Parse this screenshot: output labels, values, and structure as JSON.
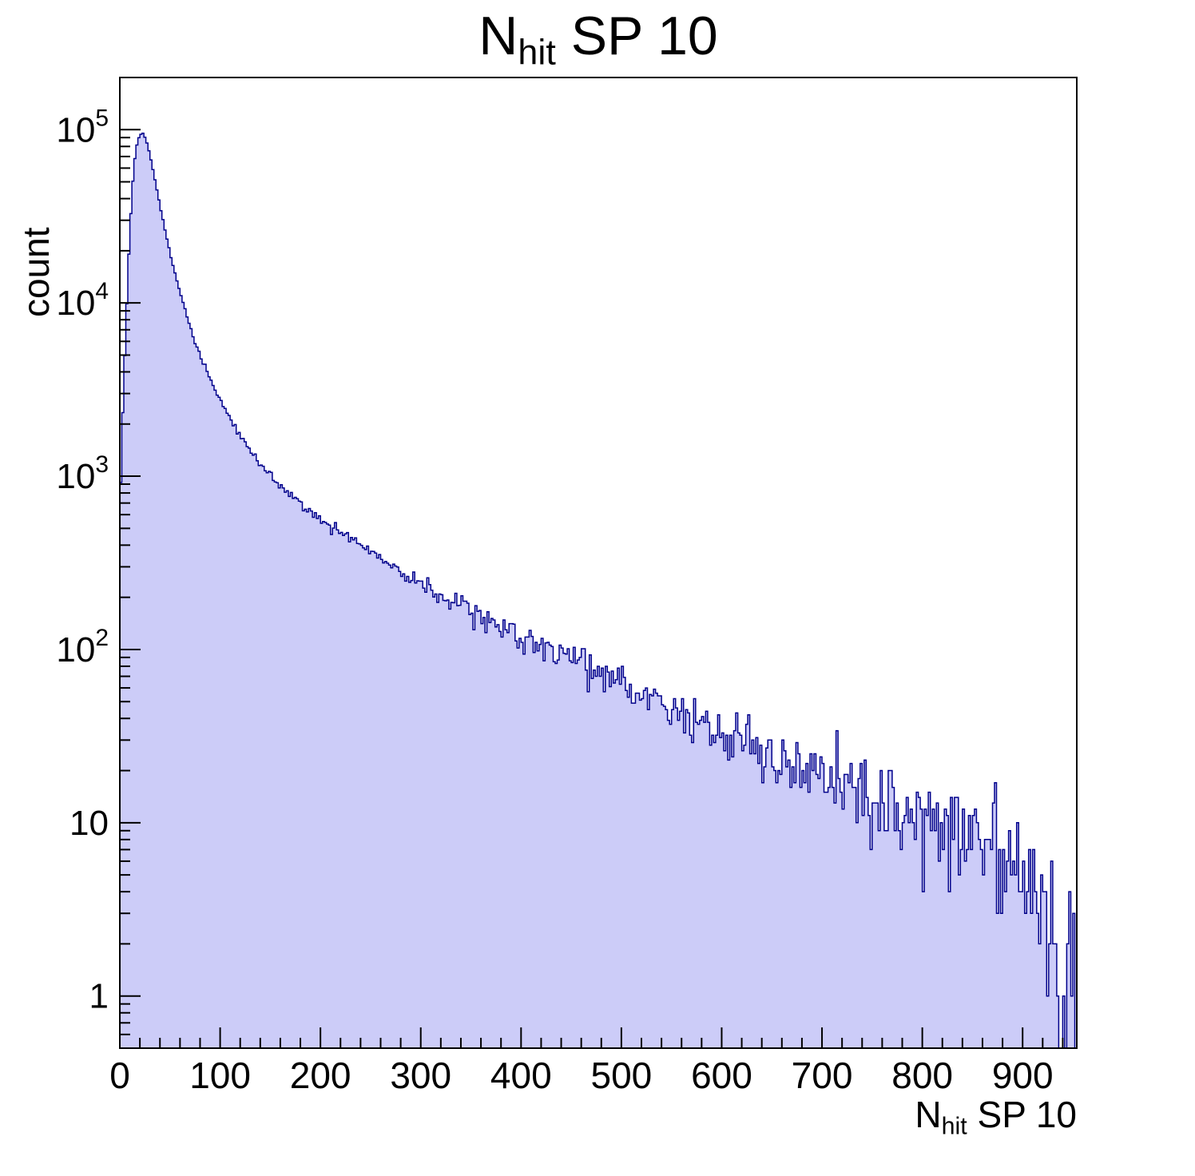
{
  "title": {
    "main": "N",
    "sub": "hit",
    "rest": " SP 10"
  },
  "axes": {
    "x": {
      "label_main": "N",
      "label_sub": "hit",
      "label_rest": " SP 10",
      "min": 0,
      "max": 954,
      "major_ticks": [
        0,
        100,
        200,
        300,
        400,
        500,
        600,
        700,
        800,
        900
      ],
      "minor_step": 20
    },
    "y": {
      "label": "count",
      "scale": "log",
      "min": 0.5,
      "max": 200000,
      "major_ticks": [
        1,
        10,
        100,
        1000,
        10000,
        100000
      ]
    }
  },
  "style": {
    "fill_color": "#ccccf8",
    "line_color": "#00008b",
    "frame_color": "#000000",
    "background": "#ffffff"
  },
  "chart_data": {
    "type": "bar",
    "subtype": "histogram-log-step",
    "title": "N_hit SP 10",
    "xlabel": "N_hit SP 10",
    "ylabel": "count",
    "xlim": [
      0,
      954
    ],
    "ylim": [
      0.5,
      200000
    ],
    "bin_width": 2,
    "x_start": 0,
    "n_bins": 477,
    "noise": {
      "model": "poisson",
      "seed": 911
    },
    "anchors": [
      [
        0,
        500
      ],
      [
        2,
        1600
      ],
      [
        4,
        3500
      ],
      [
        6,
        7000
      ],
      [
        8,
        14000
      ],
      [
        10,
        26000
      ],
      [
        12,
        42000
      ],
      [
        14,
        60000
      ],
      [
        16,
        76000
      ],
      [
        18,
        87000
      ],
      [
        20,
        93500
      ],
      [
        23,
        95500
      ],
      [
        26,
        88000
      ],
      [
        29,
        76000
      ],
      [
        32,
        63000
      ],
      [
        36,
        48000
      ],
      [
        40,
        36500
      ],
      [
        45,
        26500
      ],
      [
        50,
        19500
      ],
      [
        55,
        14800
      ],
      [
        60,
        11500
      ],
      [
        65,
        9100
      ],
      [
        70,
        7300
      ],
      [
        75,
        6000
      ],
      [
        80,
        5050
      ],
      [
        85,
        4300
      ],
      [
        90,
        3650
      ],
      [
        95,
        3150
      ],
      [
        100,
        2750
      ],
      [
        110,
        2150
      ],
      [
        120,
        1750
      ],
      [
        130,
        1430
      ],
      [
        140,
        1190
      ],
      [
        150,
        1010
      ],
      [
        160,
        880
      ],
      [
        170,
        780
      ],
      [
        180,
        695
      ],
      [
        190,
        625
      ],
      [
        200,
        565
      ],
      [
        215,
        495
      ],
      [
        230,
        435
      ],
      [
        245,
        382
      ],
      [
        260,
        337
      ],
      [
        275,
        298
      ],
      [
        290,
        264
      ],
      [
        300,
        243
      ],
      [
        320,
        207
      ],
      [
        340,
        180
      ],
      [
        360,
        157
      ],
      [
        380,
        137
      ],
      [
        400,
        119
      ],
      [
        420,
        105
      ],
      [
        440,
        93
      ],
      [
        460,
        82
      ],
      [
        480,
        72
      ],
      [
        500,
        63
      ],
      [
        520,
        55
      ],
      [
        540,
        48
      ],
      [
        560,
        42.5
      ],
      [
        580,
        37.5
      ],
      [
        600,
        33
      ],
      [
        620,
        29
      ],
      [
        640,
        26
      ],
      [
        660,
        23
      ],
      [
        680,
        20.5
      ],
      [
        700,
        18.5
      ],
      [
        720,
        16.5
      ],
      [
        740,
        15
      ],
      [
        760,
        13.5
      ],
      [
        780,
        12
      ],
      [
        800,
        10.5
      ],
      [
        820,
        9.5
      ],
      [
        840,
        8.5
      ],
      [
        860,
        7.5
      ],
      [
        880,
        6.5
      ],
      [
        900,
        5.5
      ],
      [
        915,
        4.5
      ],
      [
        930,
        3.2
      ],
      [
        940,
        2.2
      ],
      [
        950,
        1.2
      ],
      [
        954,
        0.9
      ]
    ]
  }
}
